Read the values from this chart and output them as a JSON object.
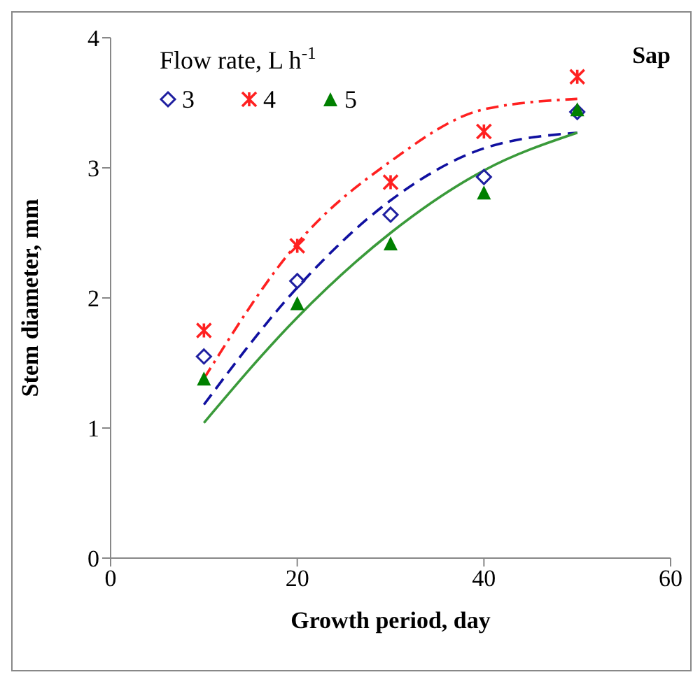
{
  "chart_data": {
    "type": "scatter",
    "title": "Sap",
    "xlabel": "Growth period, day",
    "ylabel": "Stem diameter, mm",
    "legend_title": "Flow rate, L h$^{-1}$",
    "legend": "top left",
    "grid": false,
    "xlim": [
      0,
      60
    ],
    "xticks": [
      0,
      20,
      40,
      60
    ],
    "ylim": [
      0,
      4
    ],
    "yticks": [
      0,
      1,
      2,
      3,
      4
    ],
    "x": [
      10,
      20,
      30,
      40,
      50
    ],
    "series": [
      {
        "name": "3",
        "color": "#1f1fa0",
        "marker": "diamond",
        "values": [
          1.55,
          2.13,
          2.64,
          2.93,
          3.43
        ]
      },
      {
        "name": "4",
        "color": "#ff2020",
        "marker": "cross",
        "values": [
          1.75,
          2.4,
          2.89,
          3.28,
          3.7
        ]
      },
      {
        "name": "5",
        "color": "#008000",
        "marker": "triangle",
        "values": [
          1.38,
          1.96,
          2.42,
          2.81,
          3.45
        ]
      },
      {
        "type": "line",
        "color": "#ff2020",
        "line_style": "dashdot",
        "marker": "none",
        "values": [
          1.38,
          2.42,
          3.05,
          3.45,
          3.53
        ]
      },
      {
        "type": "line",
        "color": "#1010a0",
        "line_style": "dashed",
        "marker": "none",
        "values": [
          1.18,
          2.08,
          2.75,
          3.15,
          3.27
        ]
      },
      {
        "type": "line",
        "color": "#3a9a3a",
        "line_style": "solid",
        "marker": "none",
        "values": [
          1.04,
          1.85,
          2.5,
          2.98,
          3.27
        ]
      }
    ]
  }
}
